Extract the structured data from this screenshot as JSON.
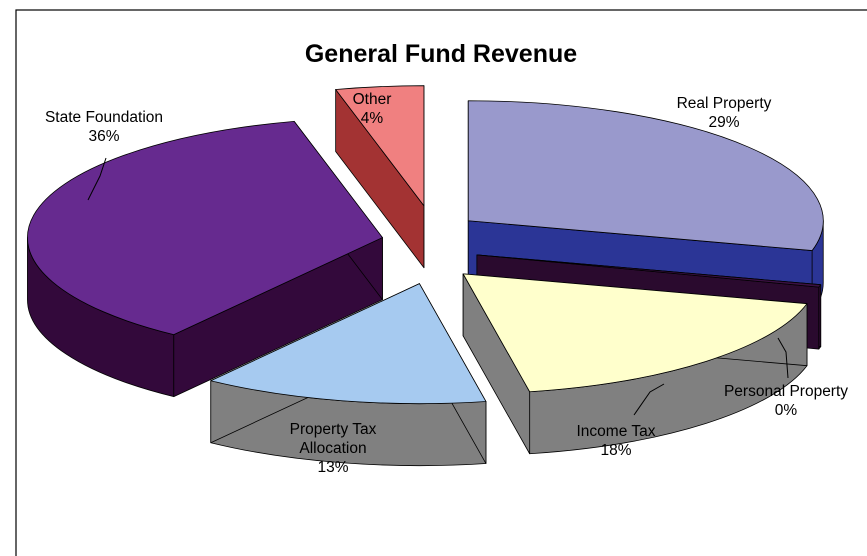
{
  "chart_data": {
    "type": "pie",
    "title": "General Fund Revenue",
    "three_d": true,
    "exploded": true,
    "legend": "none",
    "slices": [
      {
        "label": "Real Property",
        "value": 29,
        "display": "29%",
        "top_color": "#9999cc",
        "side_color": "#2b3596"
      },
      {
        "label": "Personal Property",
        "value": 0,
        "display": "0%",
        "top_color": "#3b1042",
        "side_color": "#2a0a2e"
      },
      {
        "label": "Income Tax",
        "value": 18,
        "display": "18%",
        "top_color": "#ffffcc",
        "side_color": "#808080"
      },
      {
        "label": "Property Tax Allocation",
        "label_lines": [
          "Property Tax",
          "Allocation"
        ],
        "value": 13,
        "display": "13%",
        "top_color": "#a6caf0",
        "side_color": "#808080"
      },
      {
        "label": "State Foundation",
        "value": 36,
        "display": "36%",
        "top_color": "#662a8f",
        "side_color": "#33093b"
      },
      {
        "label": "Other",
        "value": 4,
        "display": "4%",
        "top_color": "#f08080",
        "side_color": "#a33333"
      }
    ]
  }
}
